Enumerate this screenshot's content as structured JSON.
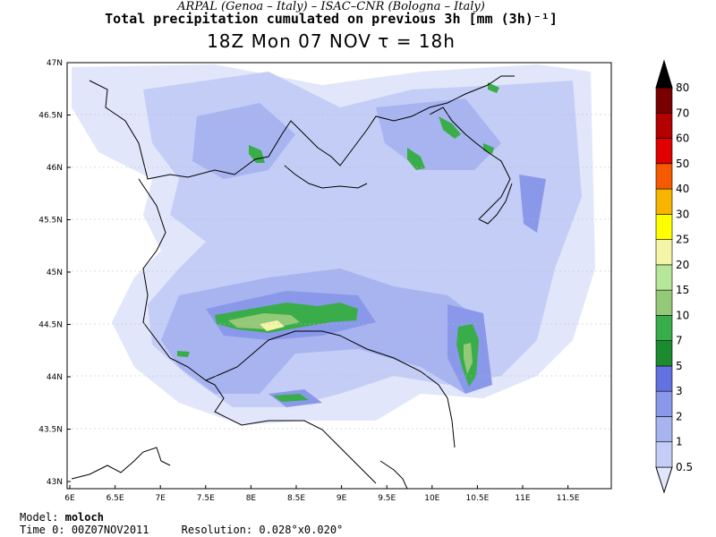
{
  "header": {
    "line1": "ARPAL (Genoa – Italy)  –  ISAC–CNR (Bologna – Italy)",
    "line2": "Total precipitation cumulated on previous 3h [mm (3h)⁻¹]",
    "line3": "18Z Mon 07 NOV  τ = 18h"
  },
  "axes": {
    "lat_labels": [
      "47N",
      "46.5N",
      "46N",
      "45.5N",
      "45N",
      "44.5N",
      "44N",
      "43.5N",
      "43N"
    ],
    "lon_labels": [
      "6E",
      "6.5E",
      "7E",
      "7.5E",
      "8E",
      "8.5E",
      "9E",
      "9.5E",
      "10E",
      "10.5E",
      "11E",
      "11.5E"
    ]
  },
  "colorbar": {
    "labels": [
      "0.5",
      "1",
      "2",
      "3",
      "5",
      "7",
      "10",
      "15",
      "20",
      "25",
      "30",
      "40",
      "50",
      "60",
      "70",
      "80"
    ],
    "colors": [
      "#e1e6fb",
      "#c4cdf6",
      "#a7b4f0",
      "#8a98e9",
      "#6372e0",
      "#1c8a2f",
      "#3aad4b",
      "#94c978",
      "#b6e697",
      "#f5f5a8",
      "#ffff00",
      "#f7b400",
      "#f55a00",
      "#e10000",
      "#b40000",
      "#7a0000",
      "#000000"
    ]
  },
  "footer": {
    "model_label": "Model:",
    "model_value": "moloch",
    "time_label": "Time 0:",
    "time_value": "00Z07NOV2011",
    "res_label": "Resolution:",
    "res_value": "0.028°x0.020°"
  }
}
